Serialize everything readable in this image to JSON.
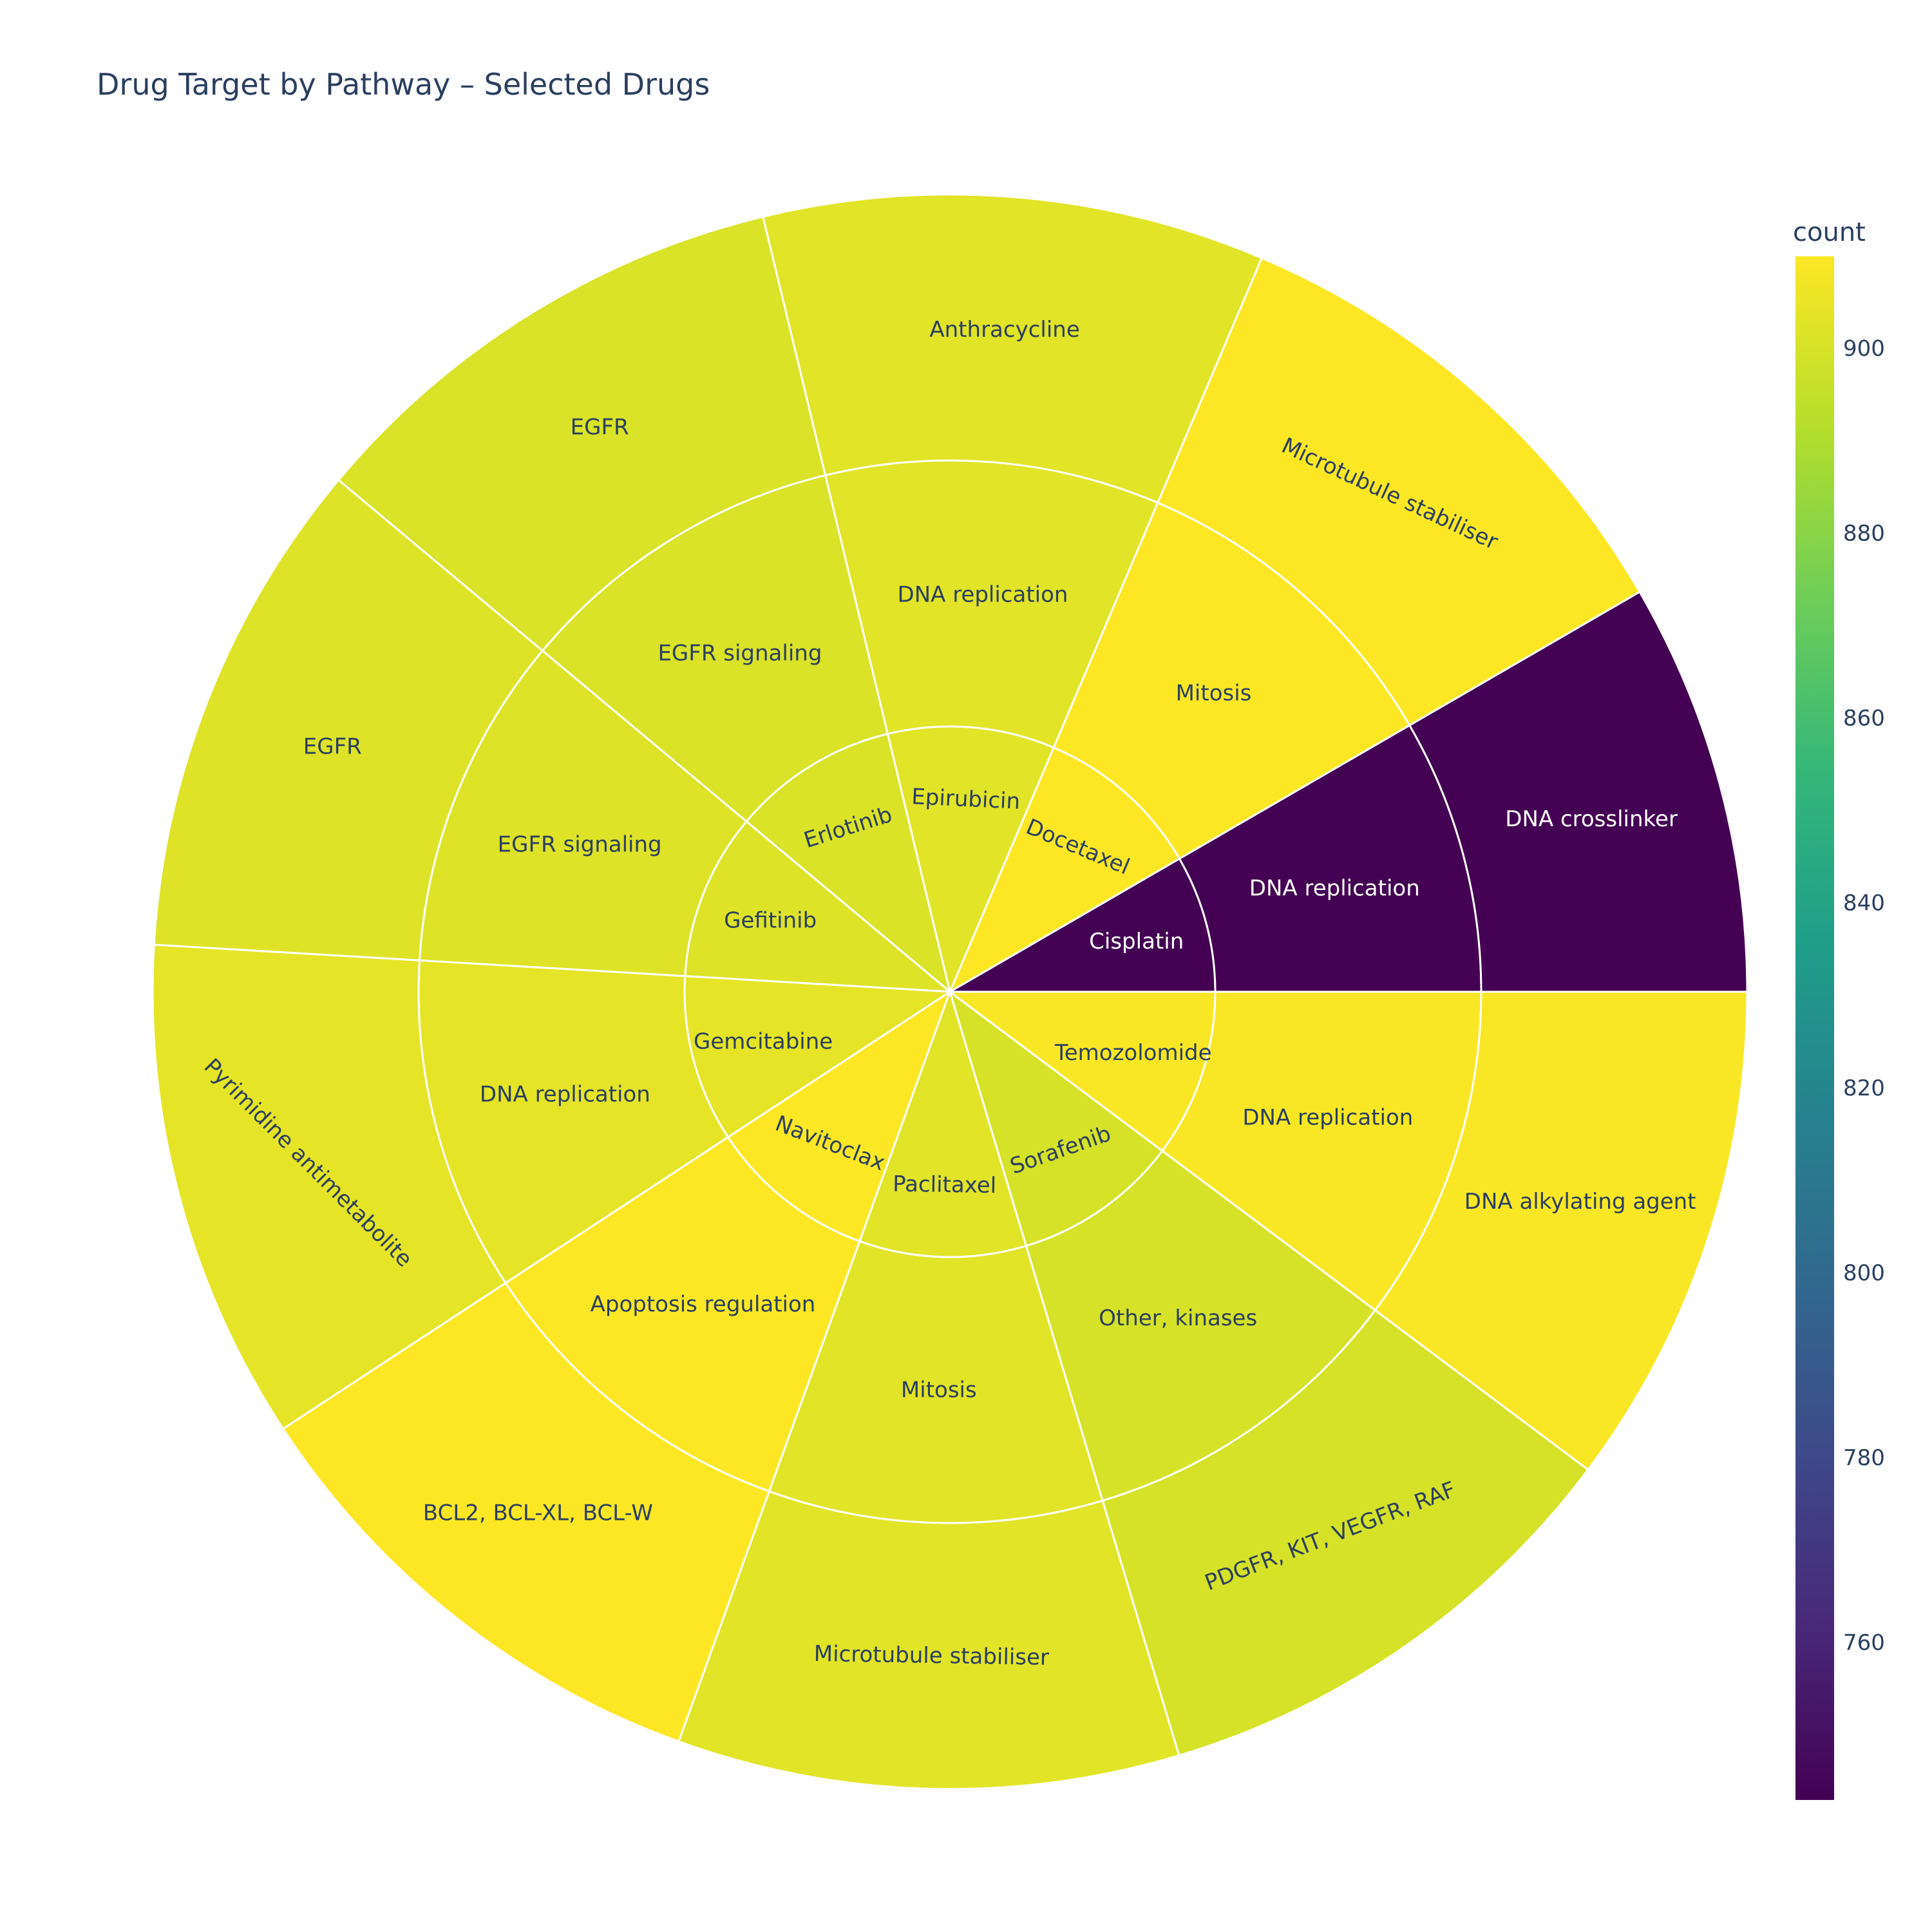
{
  "chart_data": {
    "type": "sunburst",
    "title": "Drug Target by Pathway – Selected Drugs",
    "colorbar": {
      "title": "count",
      "ticks": [
        760,
        780,
        800,
        820,
        840,
        860,
        880,
        900
      ],
      "range": [
        743,
        910
      ],
      "colorscale": "Viridis"
    },
    "items": [
      {
        "drug": "Cisplatin",
        "pathway": "DNA replication",
        "target": "DNA crosslinker",
        "count": 743
      },
      {
        "drug": "Docetaxel",
        "pathway": "Mitosis",
        "target": "Microtubule stabiliser",
        "count": 910
      },
      {
        "drug": "Epirubicin",
        "pathway": "DNA replication",
        "target": "Anthracycline",
        "count": 903
      },
      {
        "drug": "Erlotinib",
        "pathway": "EGFR signaling",
        "target": "EGFR",
        "count": 901
      },
      {
        "drug": "Gefitinib",
        "pathway": "EGFR signaling",
        "target": "EGFR",
        "count": 902
      },
      {
        "drug": "Gemcitabine",
        "pathway": "DNA replication",
        "target": "Pyrimidine antimetabolite",
        "count": 904
      },
      {
        "drug": "Navitoclax",
        "pathway": "Apoptosis regulation",
        "target": "BCL2, BCL-XL, BCL-W",
        "count": 910
      },
      {
        "drug": "Paclitaxel",
        "pathway": "Mitosis",
        "target": "Microtubule stabiliser",
        "count": 903
      },
      {
        "drug": "Sorafenib",
        "pathway": "Other, kinases",
        "target": "PDGFR, KIT, VEGFR, RAF",
        "count": 900
      },
      {
        "drug": "Temozolomide",
        "pathway": "DNA replication",
        "target": "DNA alkylating agent",
        "count": 909
      }
    ]
  }
}
